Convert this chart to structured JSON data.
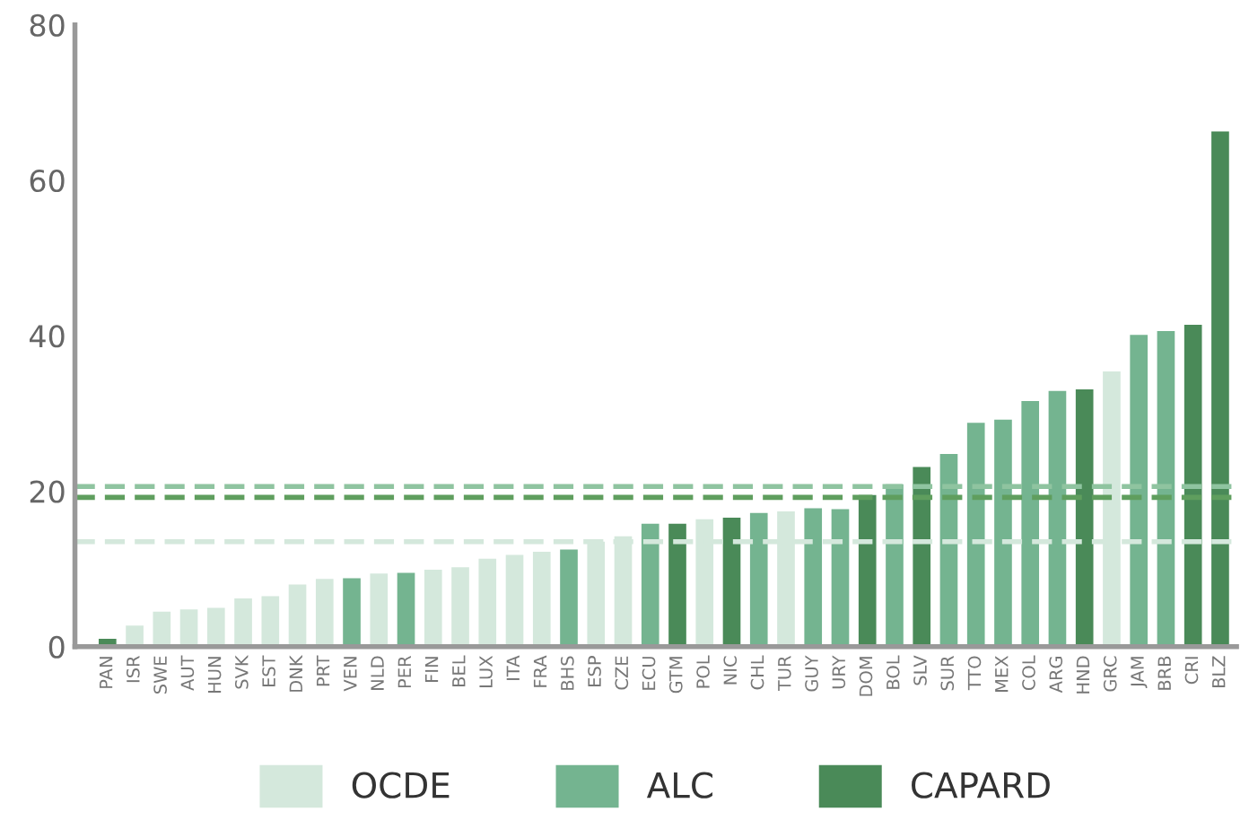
{
  "chart_data": {
    "type": "bar",
    "categories": [
      "PAN",
      "ISR",
      "SWE",
      "AUT",
      "HUN",
      "SVK",
      "EST",
      "DNK",
      "PRT",
      "VEN",
      "NLD",
      "PER",
      "FIN",
      "BEL",
      "LUX",
      "ITA",
      "FRA",
      "BHS",
      "ESP",
      "CZE",
      "ECU",
      "GTM",
      "POL",
      "NIC",
      "CHL",
      "TUR",
      "GUY",
      "URY",
      "DOM",
      "BOL",
      "SLV",
      "SUR",
      "TTO",
      "MEX",
      "COL",
      "ARG",
      "HND",
      "GRC",
      "JAM",
      "BRB",
      "CRI",
      "BLZ"
    ],
    "series": [
      {
        "name": "OCDE",
        "color": "#d4e8dc",
        "values": [
          null,
          2.7,
          4.5,
          4.8,
          5.0,
          6.2,
          6.5,
          8.0,
          8.7,
          null,
          9.4,
          null,
          9.9,
          10.2,
          11.3,
          11.8,
          12.2,
          null,
          13.5,
          14.2,
          null,
          null,
          16.4,
          null,
          null,
          17.4,
          null,
          null,
          null,
          null,
          null,
          null,
          null,
          null,
          null,
          null,
          null,
          35.4,
          null,
          null,
          null,
          null
        ]
      },
      {
        "name": "ALC",
        "color": "#74b490",
        "values": [
          null,
          null,
          null,
          null,
          null,
          null,
          null,
          null,
          null,
          8.8,
          null,
          9.5,
          null,
          null,
          null,
          null,
          null,
          12.5,
          null,
          null,
          15.8,
          null,
          null,
          null,
          17.2,
          null,
          17.8,
          17.7,
          null,
          20.9,
          null,
          24.8,
          28.8,
          29.2,
          31.6,
          32.9,
          null,
          null,
          40.1,
          40.6,
          null,
          null
        ]
      },
      {
        "name": "CAPARD",
        "color": "#4a8a58",
        "values": [
          1.0,
          null,
          null,
          null,
          null,
          null,
          null,
          null,
          null,
          null,
          null,
          null,
          null,
          null,
          null,
          null,
          null,
          null,
          null,
          null,
          null,
          15.8,
          null,
          16.6,
          null,
          null,
          null,
          null,
          19.5,
          null,
          23.1,
          null,
          null,
          null,
          null,
          null,
          33.1,
          null,
          null,
          null,
          41.4,
          66.3
        ]
      }
    ],
    "ylim": [
      0,
      80
    ],
    "yticks": [
      0,
      20,
      40,
      60,
      80
    ],
    "grid": false,
    "legend": "bottom",
    "ref_lines": [
      {
        "axis": "y",
        "value": 13.5,
        "color": "#d4e8dc",
        "line_style": "dashed"
      },
      {
        "axis": "y",
        "value": 20.6,
        "color": "#8fc4a0",
        "line_style": "dashed"
      },
      {
        "axis": "y",
        "value": 19.2,
        "color": "#5f9e5e",
        "line_style": "dashed"
      }
    ]
  }
}
